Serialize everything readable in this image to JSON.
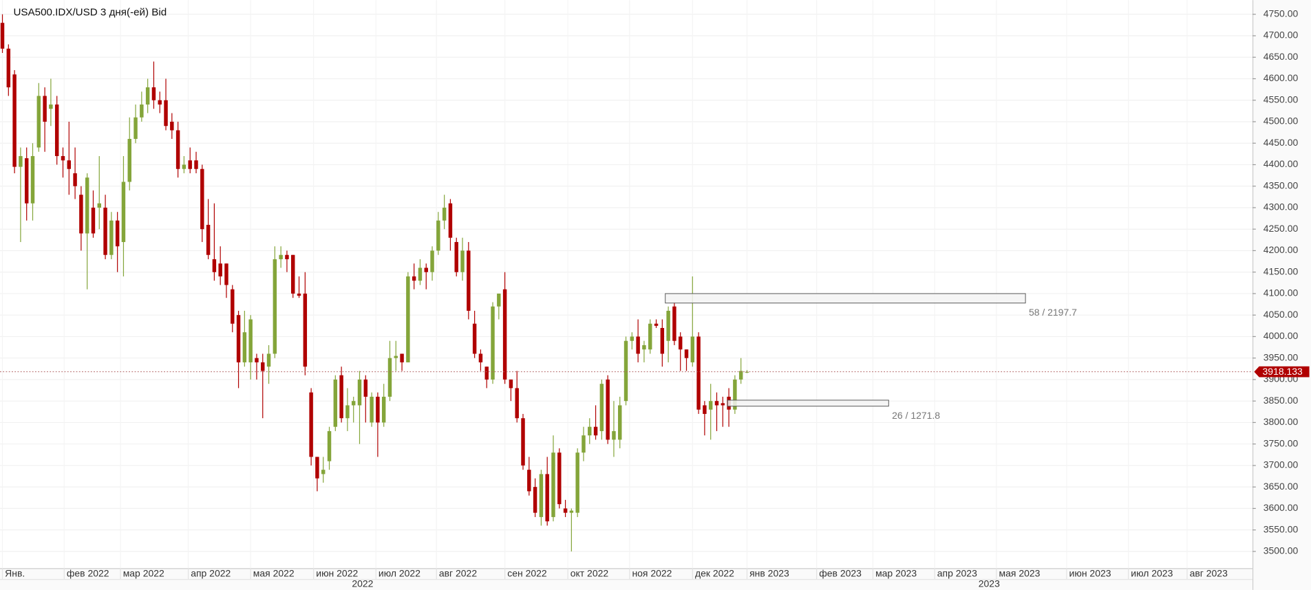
{
  "chart_data": {
    "type": "candlestick",
    "title": "USA500.IDX/USD  3 дня(-ей) Bid",
    "up_color": "#84a53a",
    "down_color": "#b00000",
    "categories": [
      null,
      null,
      null,
      null,
      null,
      null,
      null,
      null,
      null,
      null,
      null,
      null,
      null,
      null,
      null,
      null,
      null,
      null,
      null,
      null,
      null,
      null,
      null,
      null,
      null,
      null,
      null,
      null,
      null,
      null,
      null,
      null,
      null,
      null,
      null,
      null,
      null,
      null,
      null,
      null,
      null,
      null,
      null,
      null,
      null,
      null,
      null,
      null,
      null,
      null,
      null,
      null,
      null,
      null,
      null,
      null,
      null,
      null,
      null,
      null,
      null,
      null,
      null,
      null,
      null,
      null,
      null,
      null,
      null,
      null,
      null,
      null,
      null,
      null,
      null,
      null,
      null,
      null,
      null,
      null,
      null,
      null,
      null,
      null,
      null,
      null,
      null,
      null,
      null,
      null,
      null,
      null,
      null,
      null,
      null,
      null,
      null,
      null,
      null,
      null,
      null,
      null,
      null,
      null,
      null,
      null,
      null,
      null,
      null,
      null,
      null,
      null,
      null,
      null,
      null,
      null,
      null,
      null,
      null,
      null,
      null,
      null,
      null,
      null
    ],
    "open": [
      4730,
      4670,
      4610,
      4395,
      4415,
      4310,
      4440,
      4560,
      4530,
      4540,
      4420,
      4410,
      4380,
      4330,
      4240,
      4300,
      4300,
      4300,
      4190,
      4270,
      4220,
      4360,
      4460,
      4510,
      4540,
      4580,
      4550,
      4550,
      4500,
      4480,
      4390,
      4410,
      4410,
      4390,
      4260,
      4180,
      4170,
      4170,
      4110,
      4050,
      3940,
      3940,
      3950,
      3940,
      3930,
      3960,
      4180,
      4190,
      4190,
      4100,
      4100,
      3870,
      3720,
      3680,
      3710,
      3790,
      3910,
      3810,
      3840,
      3840,
      3900,
      3800,
      3860,
      3800,
      3860,
      3950,
      3960,
      3940,
      4140,
      4130,
      4160,
      4150,
      4200,
      4270,
      4310,
      4220,
      4150,
      4200,
      4030,
      3960,
      3930,
      3900,
      4070,
      4110,
      3900,
      3880,
      3810,
      3690,
      3650,
      3580,
      3680,
      3580,
      3730,
      3600,
      3590,
      3590,
      3730,
      3770,
      3790,
      3780,
      3900,
      3760,
      3760,
      3850,
      3990,
      4000,
      3970,
      3970,
      4030,
      4020,
      3990,
      4070,
      4000,
      3970,
      3940,
      4000,
      3840,
      3830,
      3850,
      3845,
      3860,
      3830,
      3900,
      3918
    ],
    "high": [
      4750,
      4680,
      4620,
      4440,
      4440,
      4450,
      4590,
      4580,
      4600,
      4560,
      4440,
      4500,
      4440,
      4350,
      4380,
      4340,
      4420,
      4330,
      4290,
      4290,
      4420,
      4510,
      4540,
      4570,
      4600,
      4640,
      4570,
      4600,
      4520,
      4500,
      4420,
      4440,
      4430,
      4400,
      4320,
      4310,
      4210,
      4170,
      4120,
      4060,
      4060,
      4050,
      3960,
      3960,
      3980,
      4210,
      4210,
      4200,
      4190,
      4140,
      4150,
      3880,
      3720,
      3720,
      3790,
      3910,
      3930,
      3880,
      3860,
      3920,
      3910,
      3870,
      3870,
      3890,
      3990,
      3990,
      3960,
      4150,
      4170,
      4180,
      4170,
      4210,
      4290,
      4330,
      4320,
      4230,
      4230,
      4220,
      4060,
      3970,
      3930,
      4080,
      4100,
      4150,
      3900,
      3920,
      3820,
      3720,
      3670,
      3690,
      3720,
      3770,
      3740,
      3620,
      3600,
      3740,
      3790,
      3810,
      3840,
      3900,
      3910,
      3850,
      3860,
      4000,
      4010,
      4040,
      3990,
      4040,
      4040,
      4040,
      4070,
      4080,
      4010,
      3970,
      4140,
      4010,
      3850,
      3890,
      3870,
      3860,
      3880,
      3910,
      3950,
      3922
    ],
    "low": [
      4660,
      4560,
      4380,
      4220,
      4270,
      4270,
      4430,
      4430,
      4490,
      4400,
      4370,
      4330,
      4320,
      4200,
      4110,
      4230,
      4250,
      4180,
      4180,
      4150,
      4140,
      4340,
      4450,
      4500,
      4520,
      4530,
      4520,
      4480,
      4460,
      4370,
      4380,
      4380,
      4380,
      4220,
      4180,
      4130,
      4120,
      4090,
      4010,
      3880,
      3930,
      3900,
      3900,
      3810,
      3890,
      3950,
      4160,
      4150,
      4090,
      4090,
      3910,
      3700,
      3640,
      3660,
      3690,
      3780,
      3800,
      3780,
      3800,
      3750,
      3800,
      3790,
      3720,
      3790,
      3850,
      3920,
      3920,
      3940,
      4110,
      4120,
      4110,
      4130,
      4190,
      4250,
      4200,
      4140,
      4130,
      4040,
      3950,
      3920,
      3880,
      3890,
      4040,
      3890,
      3850,
      3800,
      3690,
      3630,
      3580,
      3560,
      3560,
      3570,
      3600,
      3580,
      3500,
      3580,
      3710,
      3750,
      3760,
      3760,
      3750,
      3720,
      3740,
      3840,
      3970,
      3940,
      3940,
      3960,
      4020,
      3930,
      3940,
      3980,
      3920,
      3920,
      3930,
      3820,
      3770,
      3760,
      3780,
      3790,
      3790,
      3820,
      3890,
      3915
    ],
    "close": [
      4670,
      4580,
      4395,
      4420,
      4310,
      4420,
      4560,
      4500,
      4540,
      4420,
      4410,
      4390,
      4350,
      4240,
      4370,
      4240,
      4310,
      4190,
      4270,
      4210,
      4360,
      4460,
      4510,
      4540,
      4580,
      4550,
      4540,
      4490,
      4480,
      4390,
      4400,
      4390,
      4390,
      4250,
      4190,
      4150,
      4140,
      4120,
      4030,
      3940,
      4010,
      4040,
      3940,
      3920,
      3960,
      4180,
      4190,
      4180,
      4100,
      4095,
      3930,
      3720,
      3670,
      3690,
      3780,
      3900,
      3810,
      3840,
      3850,
      3900,
      3860,
      3860,
      3800,
      3860,
      3950,
      3955,
      3940,
      4140,
      4130,
      4160,
      4150,
      4200,
      4270,
      4300,
      4230,
      4150,
      4200,
      4060,
      3960,
      3940,
      3900,
      4070,
      4100,
      3900,
      3880,
      3810,
      3700,
      3640,
      3590,
      3680,
      3570,
      3730,
      3610,
      3590,
      3595,
      3730,
      3770,
      3790,
      3770,
      3890,
      3760,
      3780,
      3840,
      3990,
      4000,
      3960,
      3980,
      4030,
      4025,
      3960,
      4060,
      3990,
      3970,
      3950,
      4000,
      3830,
      3820,
      3850,
      3840,
      3840,
      3830,
      3900,
      3920,
      3918
    ],
    "xlim": [
      -0.4,
      206.5
    ],
    "ylim": [
      3461,
      4783
    ],
    "yticks": [
      {
        "value": 3500,
        "label": "3500.00"
      },
      {
        "value": 3550,
        "label": "3550.00"
      },
      {
        "value": 3600,
        "label": "3600.00"
      },
      {
        "value": 3650,
        "label": "3650.00"
      },
      {
        "value": 3700,
        "label": "3700.00"
      },
      {
        "value": 3750,
        "label": "3750.00"
      },
      {
        "value": 3800,
        "label": "3800.00"
      },
      {
        "value": 3850,
        "label": "3850.00"
      },
      {
        "value": 3900,
        "label": "3900.00"
      },
      {
        "value": 3950,
        "label": "3950.00"
      },
      {
        "value": 4000,
        "label": "4000.00"
      },
      {
        "value": 4050,
        "label": "4050.00"
      },
      {
        "value": 4100,
        "label": "4100.00"
      },
      {
        "value": 4150,
        "label": "4150.00"
      },
      {
        "value": 4200,
        "label": "4200.00"
      },
      {
        "value": 4250,
        "label": "4250.00"
      },
      {
        "value": 4300,
        "label": "4300.00"
      },
      {
        "value": 4350,
        "label": "4350.00"
      },
      {
        "value": 4400,
        "label": "4400.00"
      },
      {
        "value": 4450,
        "label": "4450.00"
      },
      {
        "value": 4500,
        "label": "4500.00"
      },
      {
        "value": 4550,
        "label": "4550.00"
      },
      {
        "value": 4600,
        "label": "4600.00"
      },
      {
        "value": 4650,
        "label": "4650.00"
      },
      {
        "value": 4700,
        "label": "4700.00"
      },
      {
        "value": 4750,
        "label": "4750.00"
      }
    ],
    "xticks": [
      {
        "value": 0,
        "label": "Янв."
      },
      {
        "value": 10.2,
        "label": "фев 2022"
      },
      {
        "value": 19.5,
        "label": "мар 2022"
      },
      {
        "value": 30.7,
        "label": "апр 2022"
      },
      {
        "value": 41,
        "label": "мая 2022"
      },
      {
        "value": 51.4,
        "label": "июн 2022"
      },
      {
        "value": 61.7,
        "label": "июл 2022"
      },
      {
        "value": 71.7,
        "label": "авг 2022"
      },
      {
        "value": 83,
        "label": "сен 2022"
      },
      {
        "value": 93.4,
        "label": "окт 2022"
      },
      {
        "value": 103.6,
        "label": "ноя 2022"
      },
      {
        "value": 114,
        "label": "дек 2022"
      },
      {
        "value": 123,
        "label": "янв 2023"
      },
      {
        "value": 134.5,
        "label": "фев 2023"
      },
      {
        "value": 143.8,
        "label": "мар 2023"
      },
      {
        "value": 154,
        "label": "апр 2023"
      },
      {
        "value": 164.2,
        "label": "мая 2023"
      },
      {
        "value": 175.8,
        "label": "июн 2023"
      },
      {
        "value": 186,
        "label": "июл 2023"
      },
      {
        "value": 195.7,
        "label": "авг 2023"
      }
    ],
    "year_ticks": [
      {
        "value": 59.5,
        "label": "2022"
      },
      {
        "value": 163,
        "label": "2023"
      }
    ],
    "last_price": 3918.133,
    "zones": [
      {
        "x0": 109.5,
        "x1": 169,
        "y0": 4078,
        "y1": 4100,
        "label": "58 / 2197.7"
      },
      {
        "x0": 119.8,
        "x1": 146.4,
        "y0": 3838,
        "y1": 3852,
        "label": "26 / 1271.8"
      }
    ]
  }
}
